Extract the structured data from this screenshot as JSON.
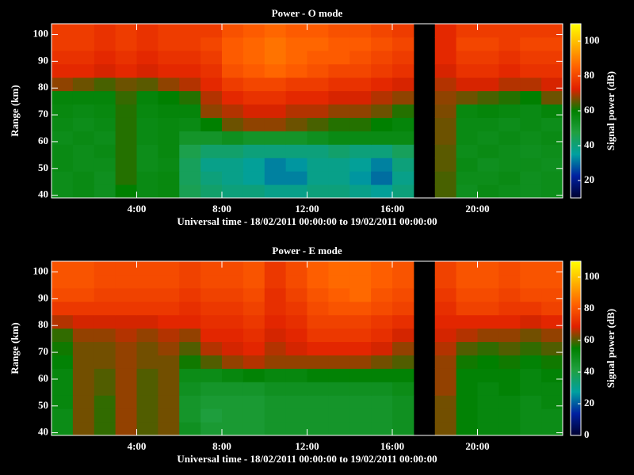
{
  "chart_data": [
    {
      "type": "heatmap",
      "title": "Power - O mode",
      "xlabel": "Universal time - 18/02/2011 00:00:00 to 19/02/2011 00:00:00",
      "ylabel": "Range (km)",
      "colorbar_label": "Signal power (dB)",
      "x_bins": [
        0,
        1,
        2,
        3,
        4,
        5,
        6,
        7,
        8,
        9,
        10,
        11,
        12,
        13,
        14,
        15,
        16,
        17,
        18,
        19,
        20,
        21,
        22,
        23,
        24
      ],
      "y_bins": [
        39,
        44,
        49,
        54,
        59,
        64,
        69,
        74,
        79,
        84,
        89,
        94,
        99,
        104
      ],
      "xlim": [
        0,
        24
      ],
      "xticks": [
        {
          "value": 4,
          "label": "4:00"
        },
        {
          "value": 8,
          "label": "8:00"
        },
        {
          "value": 12,
          "label": "12:00"
        },
        {
          "value": 16,
          "label": "16:00"
        },
        {
          "value": 20,
          "label": "20:00"
        }
      ],
      "ylim": [
        39,
        104
      ],
      "yticks": [
        40,
        50,
        60,
        70,
        80,
        90,
        100
      ],
      "clim": [
        10,
        110
      ],
      "cticks": [
        20,
        40,
        60,
        80,
        100
      ],
      "colormap": [
        "#000030",
        "#0020a0",
        "#00a0a0",
        "#20a040",
        "#008000",
        "#e02000",
        "#ff6000",
        "#ffb000",
        "#ffff00"
      ],
      "values": [
        [
          55,
          56,
          54,
          60,
          56,
          57,
          45,
          42,
          40,
          40,
          38,
          38,
          40,
          40,
          38,
          36,
          40,
          null,
          64,
          54,
          56,
          55,
          54,
          55
        ],
        [
          55,
          56,
          54,
          62,
          56,
          57,
          44,
          40,
          38,
          36,
          32,
          32,
          38,
          38,
          34,
          30,
          38,
          null,
          64,
          55,
          55,
          56,
          54,
          55
        ],
        [
          56,
          55,
          55,
          62,
          55,
          56,
          44,
          38,
          38,
          36,
          32,
          34,
          38,
          38,
          36,
          32,
          40,
          null,
          65,
          56,
          54,
          55,
          55,
          54
        ],
        [
          56,
          55,
          56,
          62,
          55,
          57,
          46,
          42,
          42,
          40,
          40,
          40,
          40,
          42,
          40,
          40,
          44,
          null,
          65,
          55,
          56,
          55,
          54,
          55
        ],
        [
          55,
          56,
          55,
          62,
          56,
          57,
          52,
          52,
          54,
          52,
          52,
          52,
          54,
          56,
          56,
          56,
          56,
          null,
          66,
          56,
          55,
          56,
          55,
          56
        ],
        [
          56,
          55,
          56,
          62,
          56,
          57,
          56,
          60,
          66,
          68,
          68,
          66,
          64,
          62,
          62,
          60,
          58,
          null,
          66,
          56,
          56,
          55,
          56,
          55
        ],
        [
          57,
          56,
          57,
          62,
          57,
          58,
          58,
          68,
          70,
          72,
          72,
          70,
          70,
          68,
          68,
          66,
          62,
          null,
          67,
          57,
          58,
          57,
          56,
          58
        ],
        [
          58,
          58,
          58,
          63,
          58,
          60,
          62,
          70,
          74,
          76,
          76,
          74,
          74,
          72,
          72,
          70,
          68,
          null,
          68,
          66,
          64,
          62,
          60,
          66
        ],
        [
          68,
          66,
          64,
          66,
          65,
          68,
          70,
          74,
          78,
          80,
          80,
          78,
          78,
          76,
          76,
          74,
          72,
          null,
          70,
          72,
          72,
          70,
          70,
          72
        ],
        [
          74,
          74,
          72,
          74,
          72,
          74,
          74,
          76,
          82,
          84,
          86,
          84,
          82,
          80,
          80,
          78,
          76,
          null,
          72,
          76,
          76,
          74,
          76,
          76
        ],
        [
          76,
          76,
          74,
          76,
          74,
          76,
          76,
          78,
          84,
          86,
          88,
          86,
          84,
          84,
          82,
          80,
          78,
          null,
          74,
          78,
          78,
          76,
          78,
          78
        ],
        [
          78,
          78,
          76,
          78,
          76,
          78,
          78,
          80,
          84,
          86,
          88,
          86,
          86,
          84,
          84,
          82,
          80,
          null,
          74,
          80,
          80,
          78,
          80,
          80
        ],
        [
          78,
          78,
          76,
          78,
          76,
          78,
          78,
          78,
          82,
          84,
          86,
          84,
          84,
          82,
          82,
          80,
          78,
          null,
          74,
          78,
          78,
          78,
          78,
          78
        ]
      ]
    },
    {
      "type": "heatmap",
      "title": "Power - E mode",
      "xlabel": "Universal time - 18/02/2011 00:00:00 to 19/02/2011 00:00:00",
      "ylabel": "Range (km)",
      "colorbar_label": "Signal power (dB)",
      "x_bins": [
        0,
        1,
        2,
        3,
        4,
        5,
        6,
        7,
        8,
        9,
        10,
        11,
        12,
        13,
        14,
        15,
        16,
        17,
        18,
        19,
        20,
        21,
        22,
        23,
        24
      ],
      "y_bins": [
        39,
        44,
        49,
        54,
        59,
        64,
        69,
        74,
        79,
        84,
        89,
        94,
        99,
        104
      ],
      "xlim": [
        0,
        24
      ],
      "xticks": [
        {
          "value": 4,
          "label": "4:00"
        },
        {
          "value": 8,
          "label": "8:00"
        },
        {
          "value": 12,
          "label": "12:00"
        },
        {
          "value": 16,
          "label": "16:00"
        },
        {
          "value": 20,
          "label": "20:00"
        }
      ],
      "ylim": [
        39,
        104
      ],
      "yticks": [
        40,
        50,
        60,
        70,
        80,
        90,
        100
      ],
      "clim": [
        0,
        110
      ],
      "cticks": [
        0,
        20,
        40,
        60,
        80,
        100
      ],
      "colormap": [
        "#000030",
        "#0020a0",
        "#00a0a0",
        "#20a040",
        "#008000",
        "#e02000",
        "#ff6000",
        "#ffb000",
        "#ffff00"
      ],
      "values": [
        [
          50,
          62,
          58,
          64,
          60,
          62,
          48,
          44,
          44,
          44,
          46,
          46,
          46,
          46,
          46,
          46,
          48,
          null,
          62,
          54,
          52,
          52,
          50,
          50
        ],
        [
          50,
          62,
          58,
          64,
          60,
          62,
          46,
          42,
          44,
          44,
          46,
          46,
          46,
          46,
          46,
          46,
          48,
          null,
          62,
          54,
          52,
          52,
          50,
          50
        ],
        [
          52,
          62,
          58,
          64,
          60,
          62,
          46,
          44,
          44,
          44,
          46,
          46,
          46,
          46,
          46,
          46,
          48,
          null,
          62,
          54,
          52,
          52,
          50,
          52
        ],
        [
          52,
          62,
          60,
          64,
          60,
          62,
          48,
          46,
          46,
          46,
          48,
          48,
          48,
          48,
          48,
          48,
          50,
          null,
          64,
          54,
          52,
          54,
          52,
          52
        ],
        [
          52,
          62,
          60,
          64,
          60,
          62,
          50,
          50,
          52,
          54,
          52,
          52,
          54,
          54,
          54,
          54,
          54,
          null,
          64,
          54,
          54,
          54,
          52,
          54
        ],
        [
          54,
          62,
          62,
          64,
          62,
          62,
          56,
          60,
          64,
          66,
          64,
          64,
          64,
          64,
          64,
          62,
          60,
          null,
          64,
          56,
          55,
          56,
          54,
          56
        ],
        [
          56,
          62,
          62,
          64,
          62,
          64,
          60,
          66,
          68,
          70,
          66,
          68,
          70,
          70,
          70,
          68,
          64,
          null,
          66,
          60,
          58,
          60,
          58,
          60
        ],
        [
          58,
          64,
          64,
          66,
          64,
          66,
          64,
          70,
          70,
          72,
          68,
          70,
          74,
          74,
          74,
          72,
          68,
          null,
          68,
          66,
          64,
          64,
          62,
          64
        ],
        [
          66,
          68,
          68,
          68,
          68,
          70,
          70,
          72,
          72,
          74,
          70,
          72,
          76,
          76,
          76,
          74,
          72,
          null,
          70,
          70,
          70,
          70,
          68,
          70
        ],
        [
          74,
          74,
          74,
          74,
          74,
          74,
          72,
          74,
          74,
          76,
          72,
          74,
          78,
          80,
          80,
          78,
          76,
          null,
          72,
          76,
          76,
          74,
          74,
          76
        ],
        [
          78,
          78,
          76,
          76,
          76,
          76,
          74,
          76,
          76,
          78,
          72,
          76,
          80,
          82,
          84,
          80,
          78,
          null,
          74,
          78,
          78,
          76,
          78,
          78
        ],
        [
          80,
          80,
          78,
          78,
          78,
          78,
          76,
          78,
          78,
          80,
          74,
          78,
          82,
          84,
          84,
          82,
          80,
          null,
          76,
          80,
          80,
          78,
          80,
          80
        ],
        [
          80,
          80,
          78,
          78,
          78,
          78,
          76,
          78,
          78,
          80,
          74,
          78,
          82,
          84,
          84,
          82,
          80,
          null,
          76,
          80,
          80,
          78,
          80,
          80
        ]
      ]
    }
  ]
}
